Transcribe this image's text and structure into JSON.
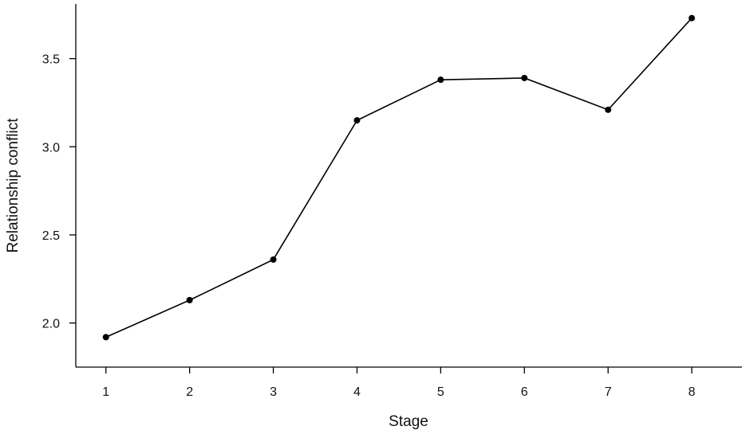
{
  "chart_data": {
    "type": "line",
    "title": "",
    "xlabel": "Stage",
    "ylabel": "Relationship conflict",
    "x": [
      1,
      2,
      3,
      4,
      5,
      6,
      7,
      8
    ],
    "series": [
      {
        "values": [
          1.92,
          2.13,
          2.36,
          3.15,
          3.38,
          3.39,
          3.21,
          3.73
        ]
      }
    ],
    "xticks": [
      1,
      2,
      3,
      4,
      5,
      6,
      7,
      8
    ],
    "xtick_labels": [
      "1",
      "2",
      "3",
      "4",
      "5",
      "6",
      "7",
      "8"
    ],
    "yticks": [
      2.0,
      2.5,
      3.0,
      3.5
    ],
    "ytick_labels": [
      "2.0",
      "2.5",
      "3.0",
      "3.5"
    ],
    "xlim": [
      0.64,
      8.6
    ],
    "ylim": [
      1.75,
      3.81
    ],
    "grid": false,
    "legend": "none",
    "colors": {
      "line": "#000000",
      "marker": "#000000",
      "axis": "#000000"
    }
  }
}
